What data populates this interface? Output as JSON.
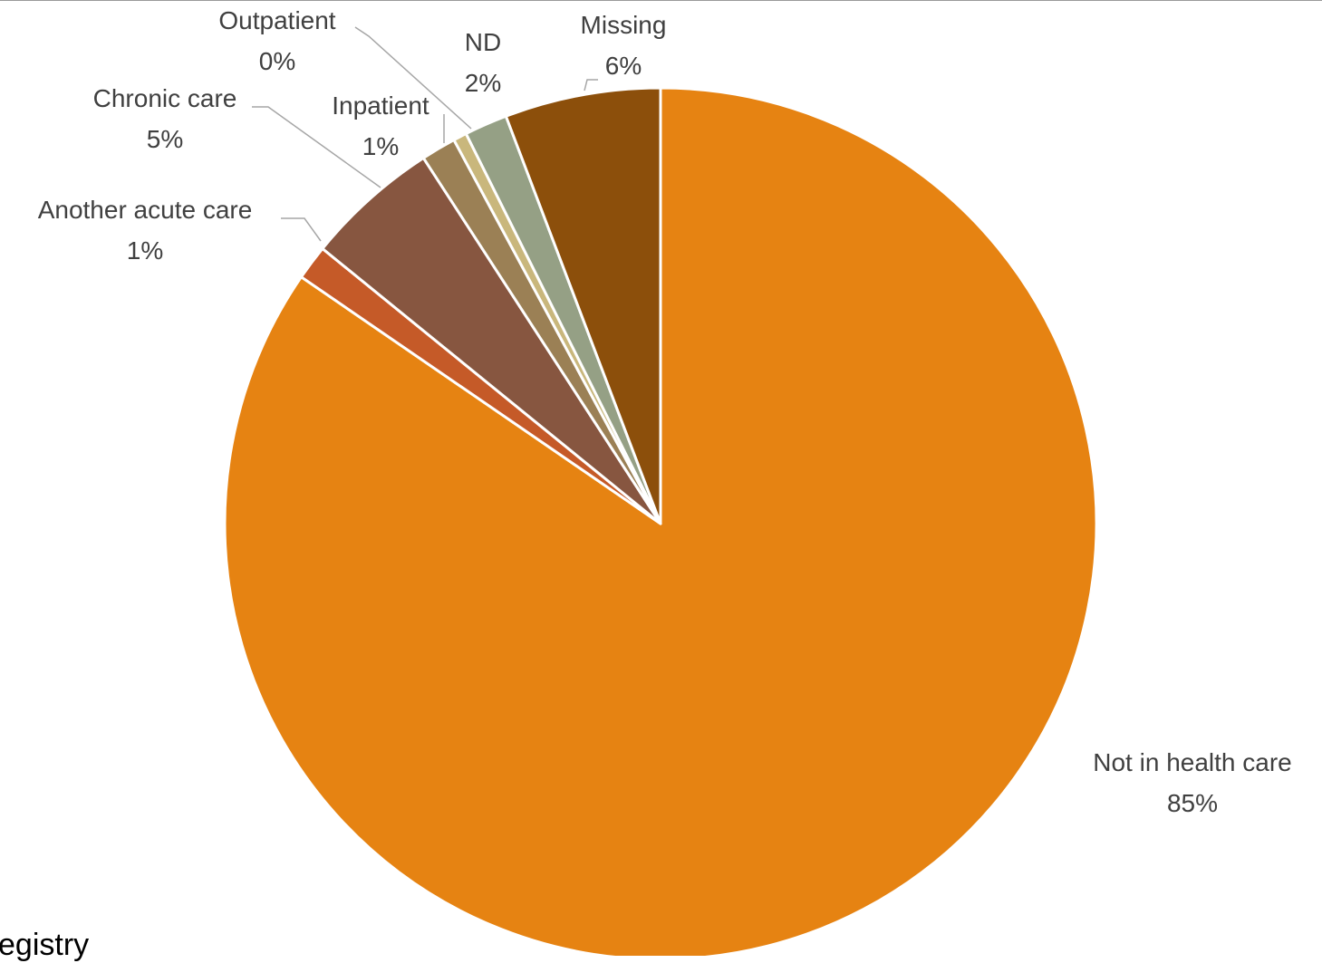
{
  "chart_data": {
    "type": "pie",
    "title": "",
    "start_angle_deg": 0,
    "direction": "clockwise",
    "slices": [
      {
        "label": "Not in health care",
        "value": 85,
        "display": "85%",
        "color": "#e68312"
      },
      {
        "label": "Another acute care",
        "value": 1.3,
        "display": "1%",
        "color": "#c55a28"
      },
      {
        "label": "Chronic care",
        "value": 5,
        "display": "5%",
        "color": "#875640"
      },
      {
        "label": "Inpatient",
        "value": 1.3,
        "display": "1%",
        "color": "#9b8055"
      },
      {
        "label": "Outpatient",
        "value": 0.5,
        "display": "0%",
        "color": "#c9b77c"
      },
      {
        "label": "ND",
        "value": 1.6,
        "display": "2%",
        "color": "#95a085"
      },
      {
        "label": "Missing",
        "value": 5.8,
        "display": "6%",
        "color": "#8c4f0b"
      }
    ]
  },
  "footer_partial_text": "egistry"
}
